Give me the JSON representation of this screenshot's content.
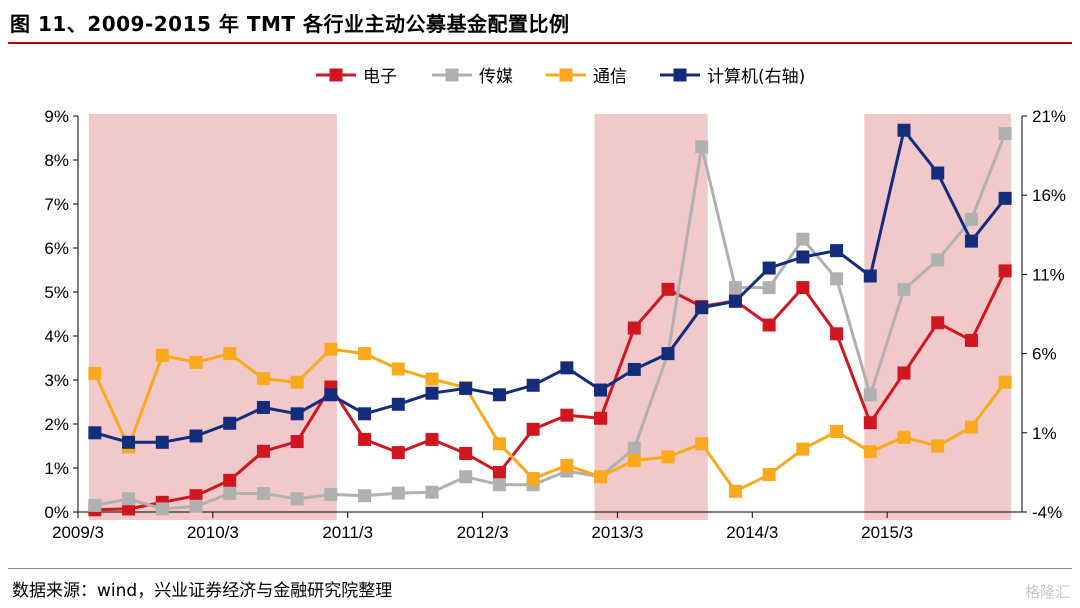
{
  "title": "图 11、2009-2015 年 TMT 各行业主动公募基金配置比例",
  "source": "数据来源：wind，兴业证券经济与金融研究院整理",
  "watermark": "格隆汇",
  "chart_data": {
    "type": "line",
    "x": [
      "2009/3",
      "2009/6",
      "2009/9",
      "2009/12",
      "2010/3",
      "2010/6",
      "2010/9",
      "2010/12",
      "2011/3",
      "2011/6",
      "2011/9",
      "2011/12",
      "2012/3",
      "2012/6",
      "2012/9",
      "2012/12",
      "2013/3",
      "2013/6",
      "2013/9",
      "2013/12",
      "2014/3",
      "2014/6",
      "2014/9",
      "2014/12",
      "2015/3",
      "2015/6",
      "2015/9",
      "2015/12"
    ],
    "x_tick_labels": [
      "2009/3",
      "2010/3",
      "2011/3",
      "2012/3",
      "2013/3",
      "2014/3",
      "2015/3"
    ],
    "y_left": {
      "ticks": [
        "0%",
        "1%",
        "2%",
        "3%",
        "4%",
        "5%",
        "6%",
        "7%",
        "8%",
        "9%"
      ],
      "min": 0,
      "max": 9
    },
    "y_right": {
      "ticks": [
        "-4%",
        "1%",
        "6%",
        "11%",
        "16%",
        "21%"
      ],
      "min": -4,
      "max": 21
    },
    "shaded_periods": [
      {
        "from": "2009/3",
        "to": "2010/12"
      },
      {
        "from": "2012/12",
        "to": "2013/9"
      },
      {
        "from": "2014/12",
        "to": "2015/12"
      }
    ],
    "shade_color": "#f2c9cb",
    "legend_position": "top-center",
    "series": [
      {
        "name": "电子",
        "axis": "left",
        "color": "#d0161e",
        "values": [
          0.05,
          0.07,
          0.22,
          0.37,
          0.72,
          1.38,
          1.6,
          2.84,
          1.65,
          1.35,
          1.65,
          1.33,
          0.9,
          1.88,
          2.2,
          2.13,
          4.18,
          5.06,
          4.67,
          4.8,
          4.25,
          5.1,
          4.05,
          2.03,
          3.16,
          4.3,
          3.9,
          5.48
        ]
      },
      {
        "name": "传媒",
        "axis": "left",
        "color": "#b0b0b0",
        "values": [
          0.15,
          0.3,
          0.07,
          0.13,
          0.42,
          0.42,
          0.3,
          0.4,
          0.37,
          0.43,
          0.45,
          0.8,
          0.62,
          0.62,
          0.93,
          0.8,
          1.45,
          3.6,
          8.3,
          5.1,
          5.1,
          6.2,
          5.3,
          2.66,
          5.06,
          5.73,
          6.65,
          8.6
        ]
      },
      {
        "name": "通信",
        "axis": "left",
        "color": "#f9a91b",
        "values": [
          3.15,
          1.48,
          3.56,
          3.4,
          3.6,
          3.03,
          2.95,
          3.7,
          3.6,
          3.25,
          3.02,
          2.83,
          1.55,
          0.76,
          1.06,
          0.8,
          1.17,
          1.25,
          1.55,
          0.47,
          0.85,
          1.43,
          1.83,
          1.37,
          1.7,
          1.5,
          1.93,
          2.95
        ]
      },
      {
        "name": "计算机(右轴)",
        "axis": "right",
        "color": "#142c7c",
        "values": [
          1.0,
          0.4,
          0.4,
          0.8,
          1.6,
          2.6,
          2.2,
          3.4,
          2.2,
          2.8,
          3.5,
          3.8,
          3.4,
          4.0,
          5.1,
          3.7,
          5.0,
          6.0,
          8.9,
          9.3,
          11.4,
          12.1,
          12.5,
          10.9,
          20.1,
          17.4,
          13.1,
          15.8
        ]
      }
    ]
  }
}
